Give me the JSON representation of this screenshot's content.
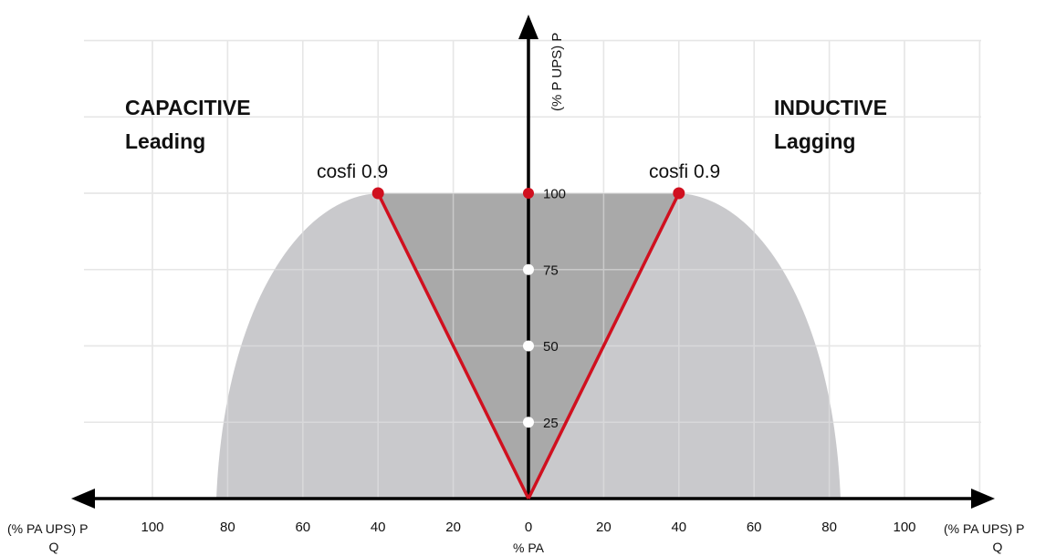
{
  "chart_data": {
    "type": "area",
    "x_axis": {
      "left_label_line1": "(% PA UPS) P",
      "left_label_line2": "Q",
      "right_label_line1": "(% PA UPS) P",
      "right_label_line2": "Q",
      "center_label": "% PA",
      "ticks": [
        100,
        80,
        60,
        40,
        20,
        0,
        20,
        40,
        60,
        80,
        100
      ],
      "tick_labels": [
        "100",
        "80",
        "60",
        "40",
        "20",
        "0",
        "20",
        "40",
        "60",
        "80",
        "100"
      ]
    },
    "y_axis": {
      "label": "(% P UPS) P",
      "ticks": [
        25,
        50,
        75,
        100
      ],
      "tick_labels": [
        "25",
        "50",
        "75",
        "100"
      ]
    },
    "regions": {
      "left": {
        "title": "CAPACITIVE",
        "subtitle": "Leading"
      },
      "right": {
        "title": "INDUCTIVE",
        "subtitle": "Lagging"
      }
    },
    "operating_area": {
      "description_points_signed_x": [
        [
          -83,
          0
        ],
        [
          -40,
          100
        ],
        [
          40,
          100
        ],
        [
          83,
          0
        ]
      ]
    },
    "cosfi_lines": [
      {
        "label": "cosfi 0.9",
        "from": [
          0,
          0
        ],
        "to": [
          -40,
          100
        ]
      },
      {
        "label": "cosfi 0.9",
        "from": [
          0,
          0
        ],
        "to": [
          40,
          100
        ]
      }
    ],
    "y_axis_markers": [
      {
        "y": 100,
        "color": "#d0101f"
      },
      {
        "y": 75,
        "color": "#ffffff"
      },
      {
        "y": 50,
        "color": "#ffffff"
      },
      {
        "y": 25,
        "color": "#ffffff"
      }
    ],
    "colors": {
      "outer_area": "#c9c9cc",
      "inner_triangle": "#a9a9a9",
      "line": "#d0101f",
      "grid": "#e6e6e6",
      "axis": "#000000"
    },
    "grid": true
  }
}
